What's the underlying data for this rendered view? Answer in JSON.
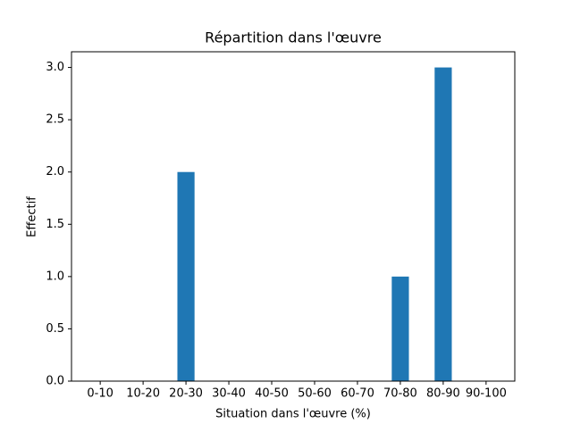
{
  "chart_data": {
    "type": "bar",
    "title": "Répartition dans l'œuvre",
    "x_label": "Situation dans l'œuvre (%)",
    "y_label": "Effectif",
    "categories": [
      "0-10",
      "10-20",
      "20-30",
      "30-40",
      "40-50",
      "50-60",
      "60-70",
      "70-80",
      "80-90",
      "90-100"
    ],
    "values": [
      0,
      0,
      2,
      0,
      0,
      0,
      0,
      1,
      3,
      0
    ],
    "color": "#1f77b4",
    "ylim": [
      0,
      3.15
    ],
    "yticks": [
      {
        "value": 0,
        "label": "0.0"
      },
      0.5,
      {
        "value": 1,
        "label": "1.0"
      },
      1.5,
      {
        "value": 2,
        "label": "2.0"
      },
      2.5,
      {
        "value": 3,
        "label": "3.0"
      }
    ],
    "grid": false
  }
}
